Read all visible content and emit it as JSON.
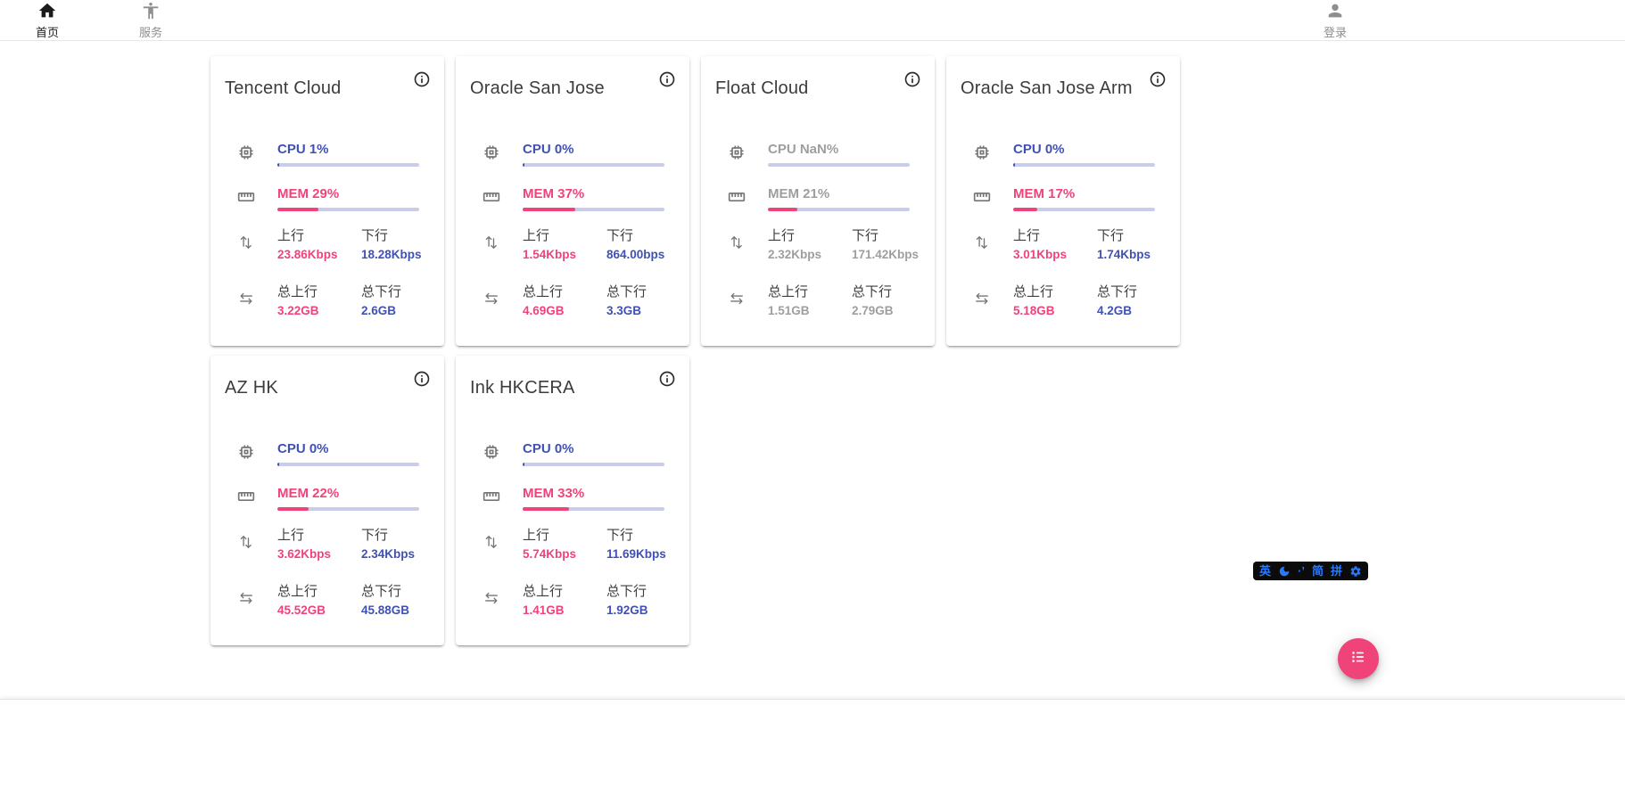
{
  "nav": {
    "home": {
      "label": "首页",
      "icon": "home-icon"
    },
    "services": {
      "label": "服务",
      "icon": "accessibility-icon"
    },
    "login": {
      "label": "登录",
      "icon": "person-icon"
    }
  },
  "labels": {
    "up": "上行",
    "down": "下行",
    "total_up": "总上行",
    "total_down": "总下行"
  },
  "cards": [
    {
      "title": "Tencent Cloud",
      "cpu_label": "CPU 1%",
      "cpu_percent": 1,
      "mem_label": "MEM 29%",
      "mem_percent": 29,
      "up": "23.86Kbps",
      "down": "18.28Kbps",
      "total_up": "3.22GB",
      "total_down": "2.6GB",
      "muted": false
    },
    {
      "title": "Oracle San Jose",
      "cpu_label": "CPU 0%",
      "cpu_percent": 0,
      "mem_label": "MEM 37%",
      "mem_percent": 37,
      "up": "1.54Kbps",
      "down": "864.00bps",
      "total_up": "4.69GB",
      "total_down": "3.3GB",
      "muted": false
    },
    {
      "title": "Float Cloud",
      "cpu_label": "CPU NaN%",
      "cpu_percent": null,
      "mem_label": "MEM 21%",
      "mem_percent": 21,
      "up": "2.32Kbps",
      "down": "171.42Kbps",
      "total_up": "1.51GB",
      "total_down": "2.79GB",
      "muted": true
    },
    {
      "title": "Oracle San Jose Arm",
      "cpu_label": "CPU 0%",
      "cpu_percent": 0,
      "mem_label": "MEM 17%",
      "mem_percent": 17,
      "up": "3.01Kbps",
      "down": "1.74Kbps",
      "total_up": "5.18GB",
      "total_down": "4.2GB",
      "muted": false
    },
    {
      "title": "AZ HK",
      "cpu_label": "CPU 0%",
      "cpu_percent": 0,
      "mem_label": "MEM 22%",
      "mem_percent": 22,
      "up": "3.62Kbps",
      "down": "2.34Kbps",
      "total_up": "45.52GB",
      "total_down": "45.88GB",
      "muted": false
    },
    {
      "title": "Ink HKCERA",
      "cpu_label": "CPU 0%",
      "cpu_percent": 0,
      "mem_label": "MEM 33%",
      "mem_percent": 33,
      "up": "5.74Kbps",
      "down": "11.69Kbps",
      "total_up": "1.41GB",
      "total_down": "1.92GB",
      "muted": false
    }
  ],
  "ime": {
    "english": "英",
    "moon_icon": "half-moon-icon",
    "punctuation": "·’",
    "simplified": "简",
    "pinyin": "拼",
    "gear_icon": "settings-gear-icon"
  },
  "fab_icon": "list-menu-icon",
  "colors": {
    "pink": "#f0437a",
    "blue": "#3f51b5",
    "track": "#c9cdec",
    "muted": "#9e9e9e",
    "ime": "#2979ff"
  }
}
